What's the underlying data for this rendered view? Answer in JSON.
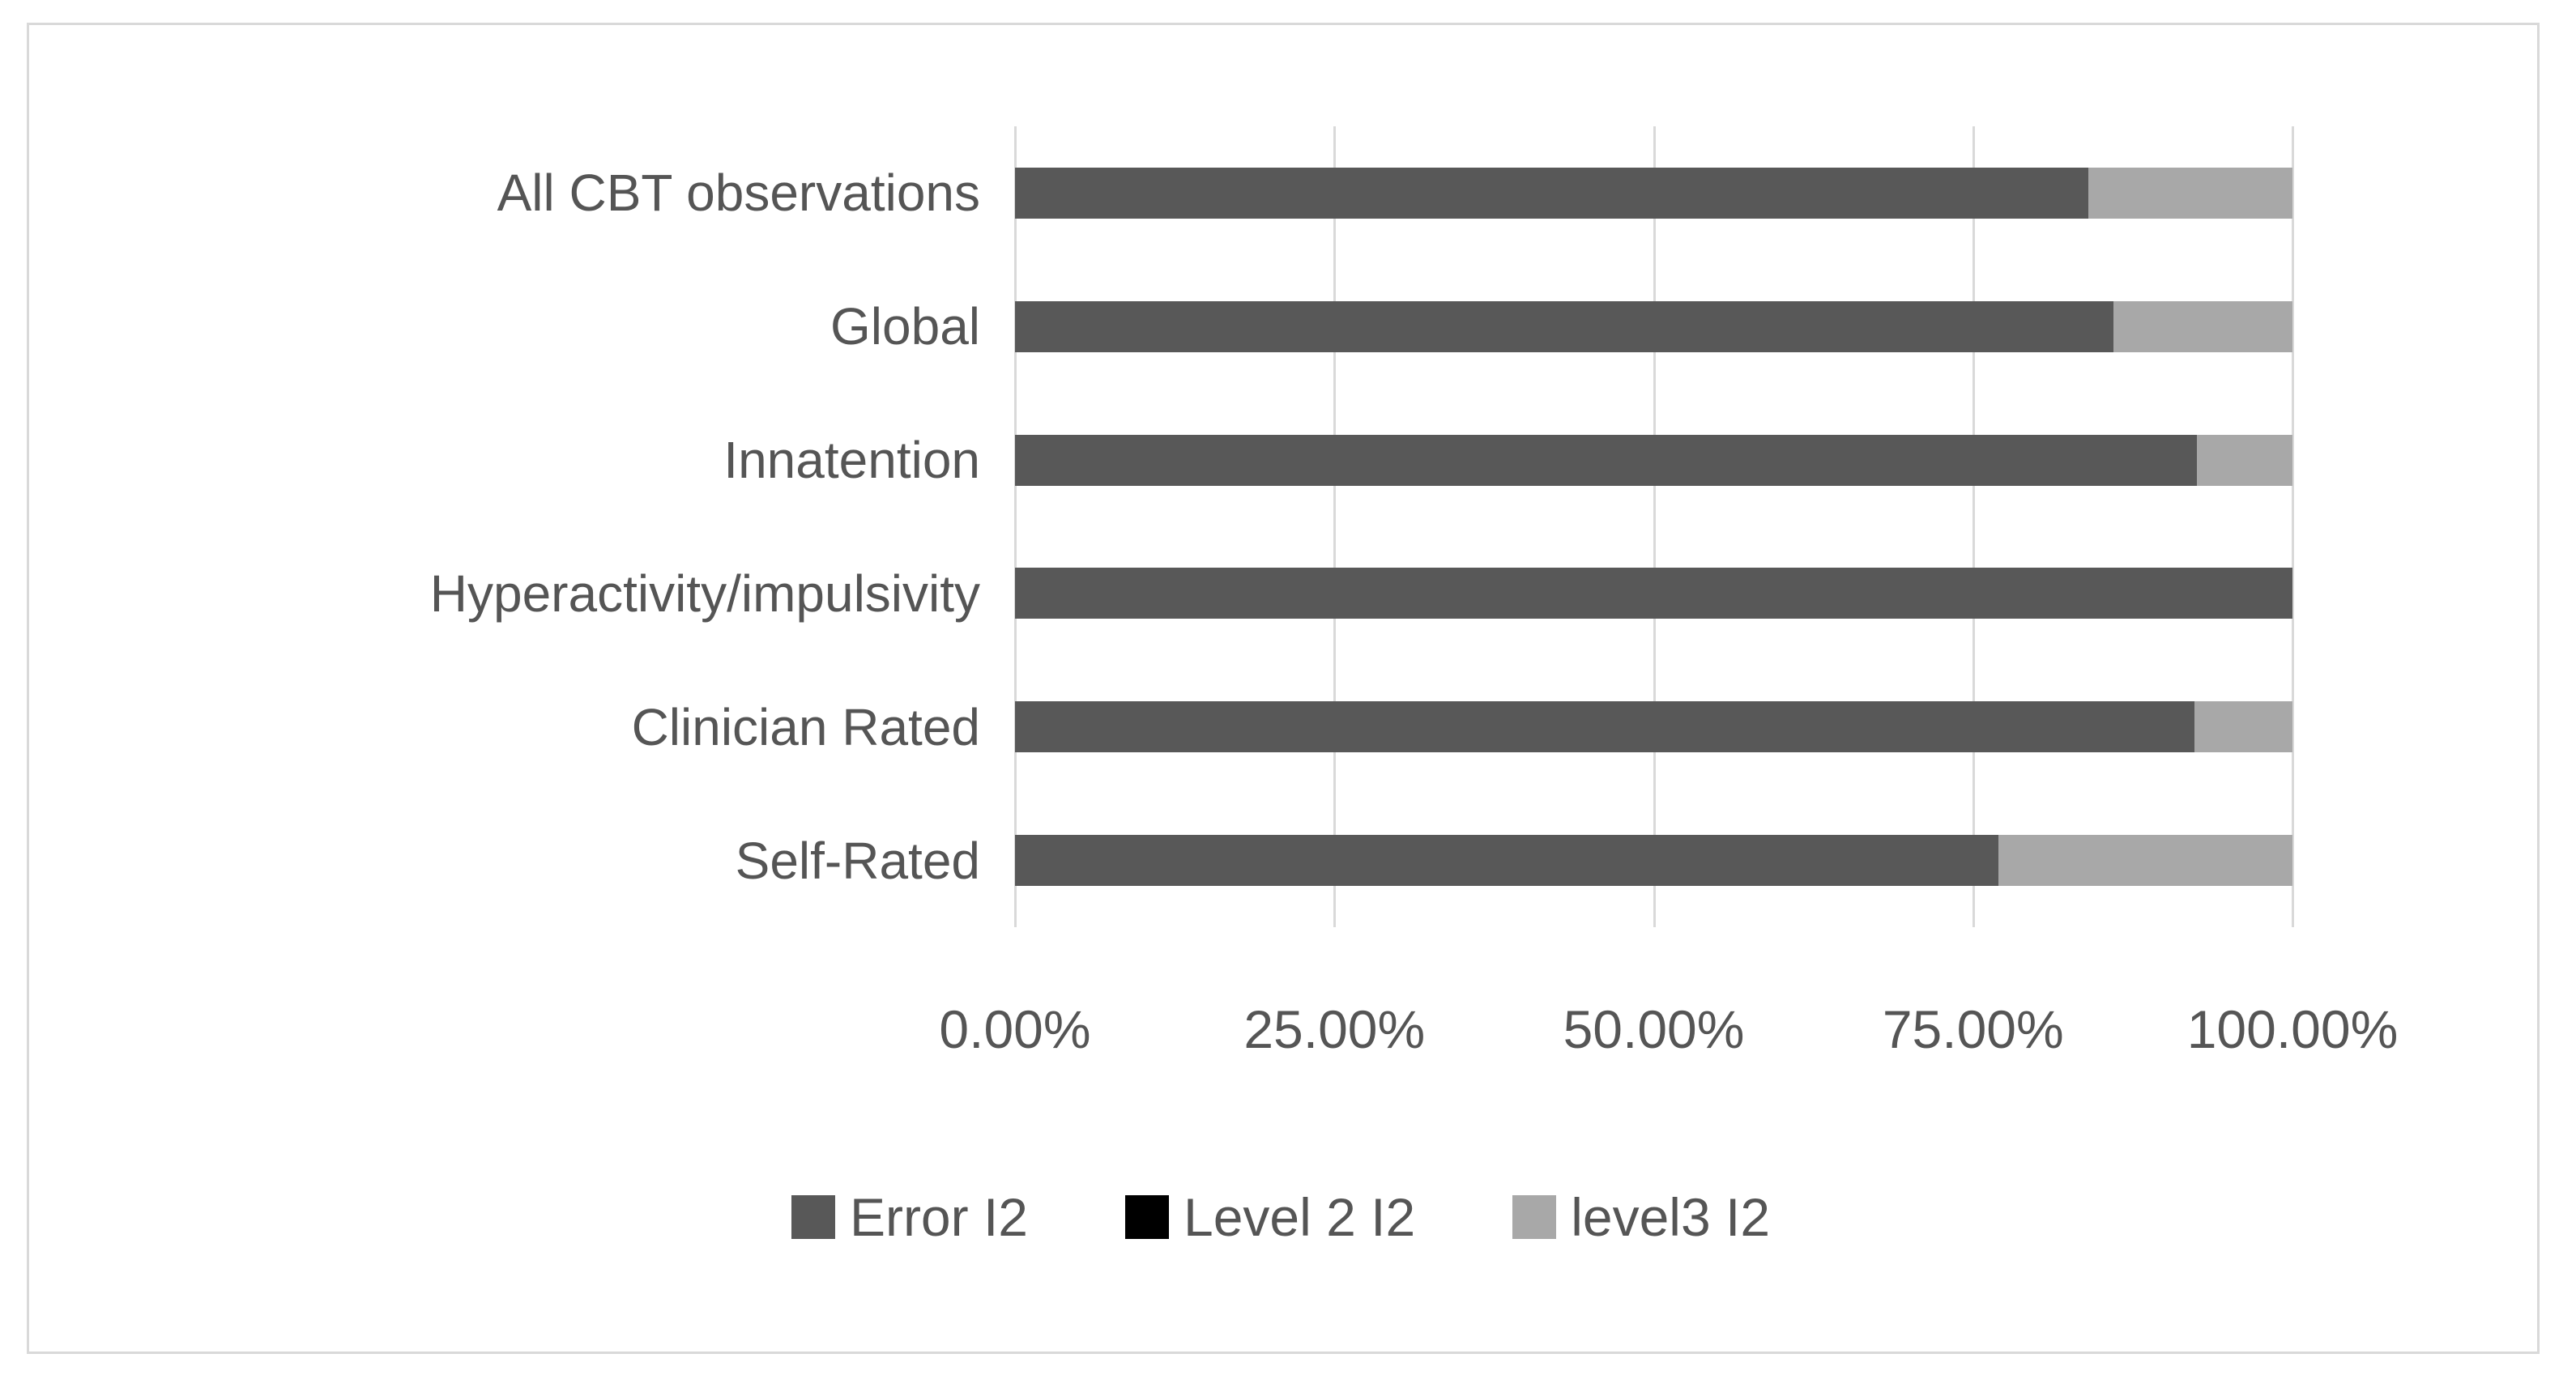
{
  "chart_data": {
    "type": "bar",
    "orientation": "horizontal",
    "stacked": true,
    "title": "",
    "xlabel": "",
    "ylabel": "",
    "categories": [
      "All CBT observations",
      "Global",
      "Innatention",
      "Hyperactivity/impulsivity",
      "Clinician Rated",
      "Self-Rated"
    ],
    "series": [
      {
        "name": "Error I2",
        "color": "#585858",
        "values": [
          84.0,
          86.0,
          92.5,
          100.0,
          92.3,
          77.0
        ]
      },
      {
        "name": "Level 2 I2",
        "color": "#000000",
        "values": [
          0,
          0,
          0,
          0,
          0,
          0
        ]
      },
      {
        "name": "level3 I2",
        "color": "#a8a8a8",
        "values": [
          16.0,
          14.0,
          7.5,
          0.0,
          7.7,
          23.0
        ]
      }
    ],
    "x_ticks": [
      "0.00%",
      "25.00%",
      "50.00%",
      "75.00%",
      "100.00%"
    ],
    "x_tick_values": [
      0,
      25,
      50,
      75,
      100
    ],
    "xlim": [
      0,
      100
    ],
    "grid": true,
    "legend_position": "bottom"
  },
  "legend": {
    "items": [
      {
        "label": "Error I2",
        "color": "#585858"
      },
      {
        "label": "Level 2 I2",
        "color": "#000000"
      },
      {
        "label": "level3 I2",
        "color": "#a8a8a8"
      }
    ]
  },
  "colors": {
    "background": "#ffffff",
    "border": "#d9d9d9",
    "gridline": "#d9d9d9",
    "text": "#555555"
  }
}
